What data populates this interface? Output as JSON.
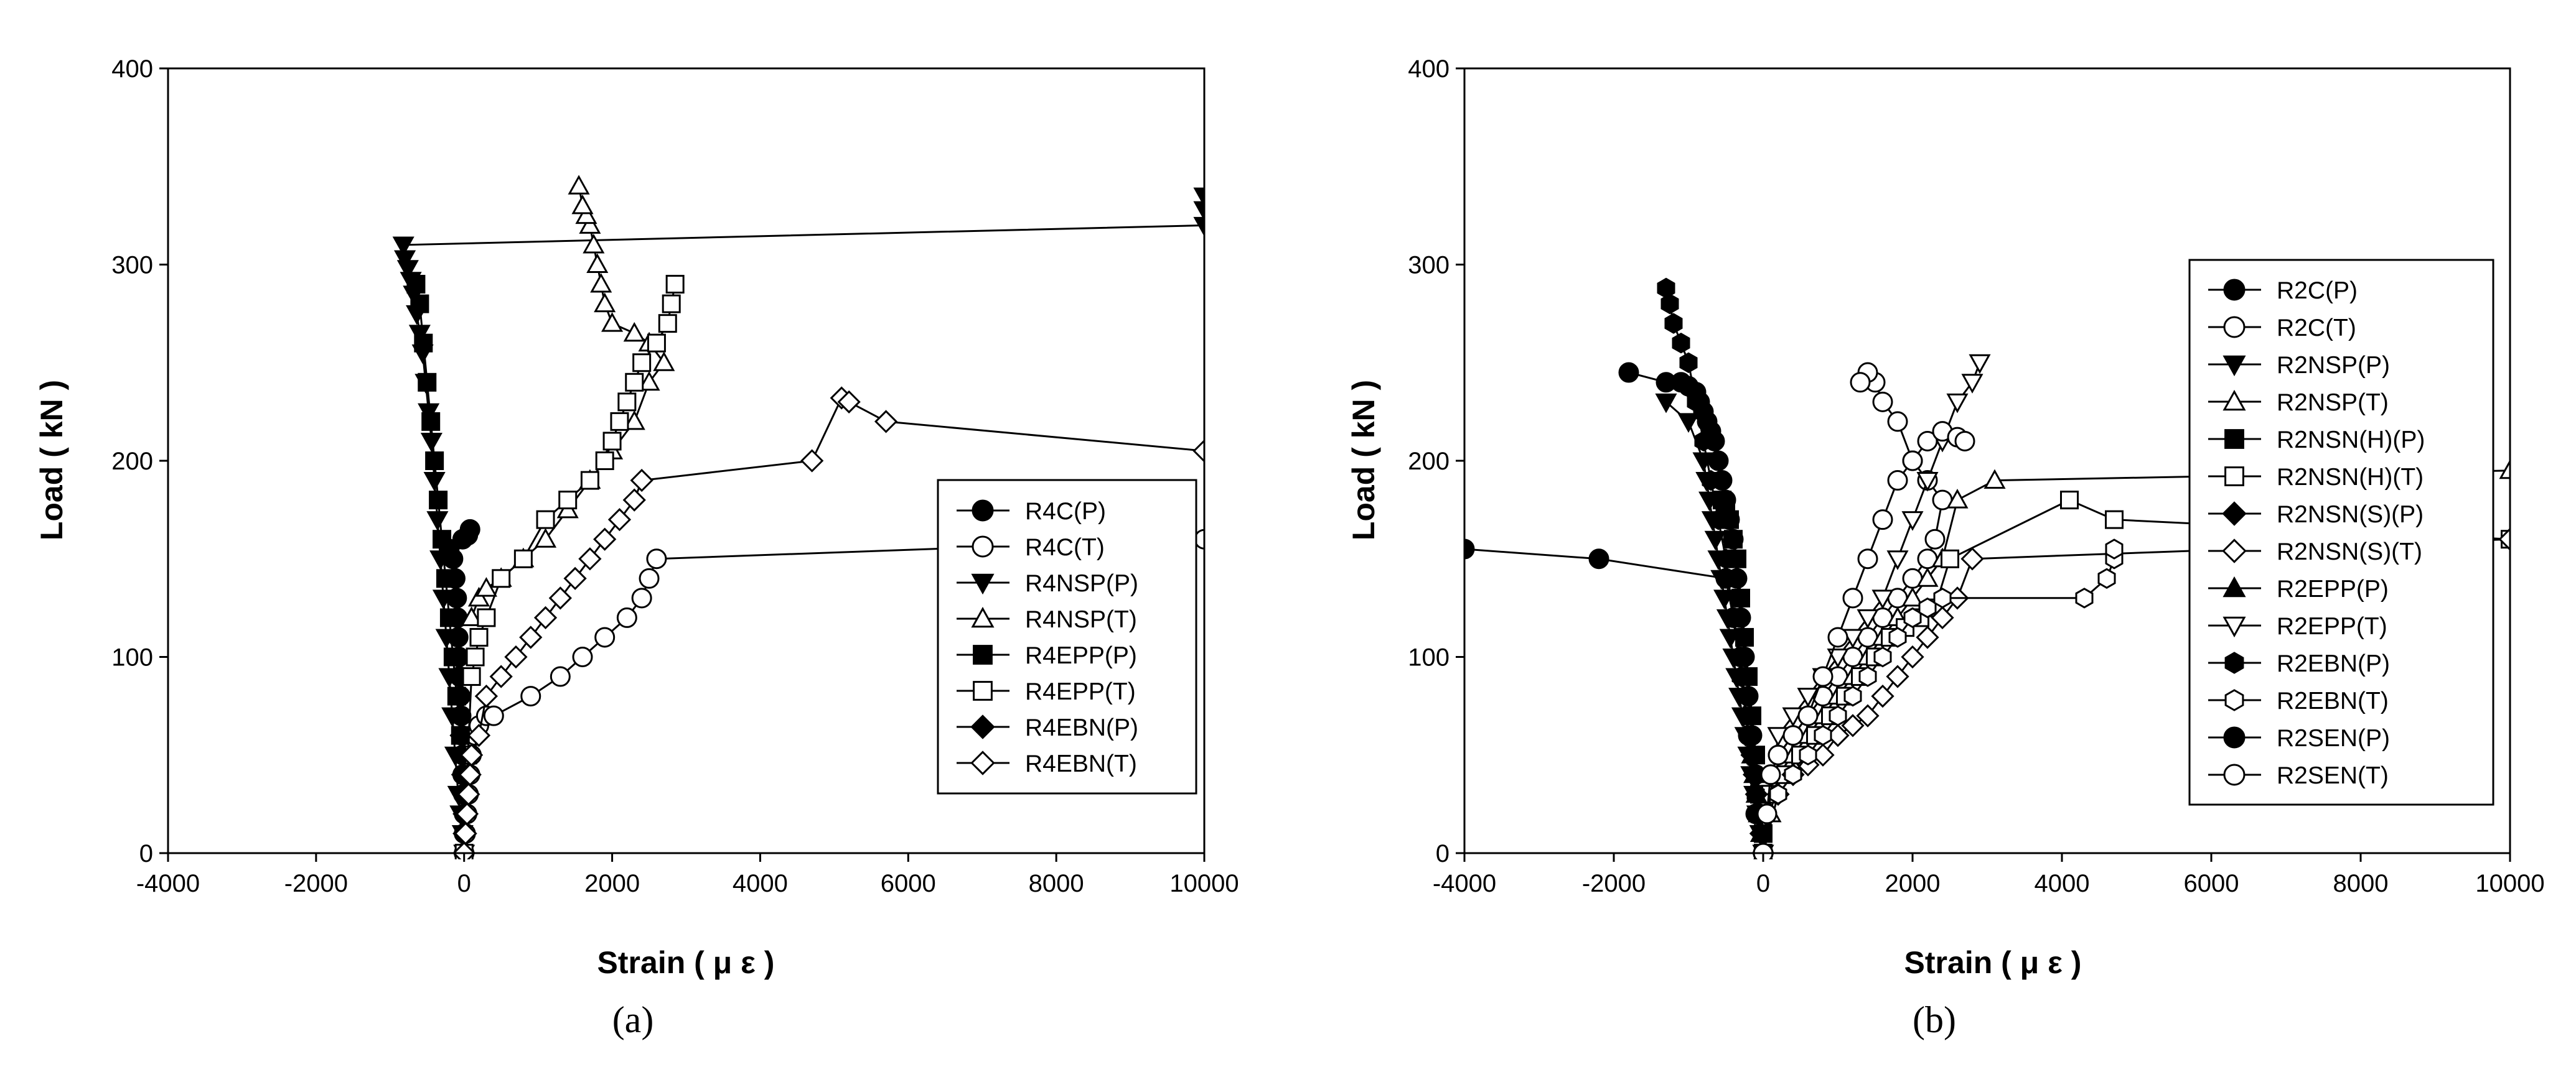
{
  "chart_data": [
    {
      "type": "scatter",
      "caption": "(a)",
      "xlabel": "Strain ( μ ε )",
      "ylabel": "Load ( kN )",
      "xlim": [
        -4000,
        10000
      ],
      "ylim": [
        0,
        400
      ],
      "xticks": [
        -4000,
        -2000,
        0,
        2000,
        4000,
        6000,
        8000,
        10000
      ],
      "yticks": [
        0,
        100,
        200,
        300,
        400
      ],
      "grid": false,
      "legend_position": "lower-right",
      "series": [
        {
          "name": "R4C(P)",
          "marker": "circle",
          "fill": "black",
          "x": [
            0,
            0,
            0,
            -10,
            -20,
            -20,
            -30,
            -40,
            -50,
            -60,
            -70,
            -80,
            -90,
            -100,
            -120,
            -150,
            -200,
            -20,
            50,
            80
          ],
          "y": [
            0,
            10,
            20,
            30,
            40,
            50,
            60,
            70,
            80,
            90,
            100,
            110,
            120,
            130,
            140,
            150,
            155,
            160,
            162,
            165
          ]
        },
        {
          "name": "R4C(T)",
          "marker": "circle",
          "fill": "white",
          "x": [
            0,
            20,
            40,
            60,
            80,
            100,
            150,
            200,
            300,
            400,
            900,
            1300,
            1600,
            1900,
            2200,
            2400,
            2500,
            2600,
            10000
          ],
          "y": [
            0,
            10,
            20,
            30,
            40,
            50,
            60,
            65,
            70,
            70,
            80,
            90,
            100,
            110,
            120,
            130,
            140,
            150,
            160
          ]
        },
        {
          "name": "R4NSP(P)",
          "marker": "triangle-down",
          "fill": "black",
          "x": [
            0,
            -20,
            -50,
            -80,
            -120,
            -160,
            -200,
            -240,
            -280,
            -320,
            -360,
            -400,
            -440,
            -480,
            -520,
            -560,
            -600,
            -640,
            -680,
            -720,
            -760,
            -800,
            -820,
            10000,
            10000,
            10000
          ],
          "y": [
            0,
            10,
            20,
            30,
            50,
            70,
            90,
            110,
            130,
            150,
            170,
            190,
            210,
            225,
            240,
            255,
            265,
            275,
            285,
            292,
            298,
            303,
            310,
            320,
            328,
            335
          ]
        },
        {
          "name": "R4NSP(T)",
          "marker": "triangle-up",
          "fill": "white",
          "x": [
            100,
            200,
            300,
            500,
            800,
            1100,
            1400,
            1700,
            2000,
            2300,
            2500,
            2700,
            2500,
            2300,
            2000,
            1900,
            1850,
            1800,
            1750,
            1700,
            1650,
            1600,
            1550
          ],
          "y": [
            120,
            130,
            135,
            140,
            150,
            160,
            175,
            190,
            205,
            220,
            240,
            250,
            260,
            265,
            270,
            280,
            290,
            300,
            310,
            320,
            325,
            330,
            340
          ]
        },
        {
          "name": "R4EPP(P)",
          "marker": "square",
          "fill": "black",
          "x": [
            -50,
            -100,
            -150,
            -200,
            -250,
            -300,
            -350,
            -400,
            -450,
            -500,
            -550,
            -600,
            -650
          ],
          "y": [
            60,
            80,
            100,
            120,
            140,
            160,
            180,
            200,
            220,
            240,
            260,
            280,
            290
          ]
        },
        {
          "name": "R4EPP(T)",
          "marker": "square",
          "fill": "white",
          "x": [
            0,
            50,
            100,
            150,
            200,
            300,
            500,
            800,
            1100,
            1400,
            1700,
            1900,
            2000,
            2100,
            2200,
            2300,
            2400,
            2600,
            2750,
            2800,
            2850
          ],
          "y": [
            0,
            50,
            90,
            100,
            110,
            120,
            140,
            150,
            170,
            180,
            190,
            200,
            210,
            220,
            230,
            240,
            250,
            260,
            270,
            280,
            290
          ]
        },
        {
          "name": "R4EBN(P)",
          "marker": "diamond",
          "fill": "black",
          "x": [
            0,
            0,
            0,
            -10,
            -20,
            -30,
            -40
          ],
          "y": [
            0,
            10,
            20,
            30,
            40,
            50,
            60
          ]
        },
        {
          "name": "R4EBN(T)",
          "marker": "diamond",
          "fill": "white",
          "x": [
            0,
            20,
            40,
            60,
            80,
            100,
            200,
            300,
            500,
            700,
            900,
            1100,
            1300,
            1500,
            1700,
            1900,
            2100,
            2300,
            2400,
            4700,
            5100,
            5200,
            5700,
            10000
          ],
          "y": [
            0,
            10,
            20,
            30,
            40,
            50,
            60,
            80,
            90,
            100,
            110,
            120,
            130,
            140,
            150,
            160,
            170,
            180,
            190,
            200,
            232,
            230,
            220,
            205
          ]
        }
      ]
    },
    {
      "type": "scatter",
      "caption": "(b)",
      "xlabel": "Strain ( μ ε )",
      "ylabel": "Load ( kN )",
      "xlim": [
        -4000,
        10000
      ],
      "ylim": [
        0,
        400
      ],
      "xticks": [
        -4000,
        -2000,
        0,
        2000,
        4000,
        6000,
        8000,
        10000
      ],
      "yticks": [
        0,
        100,
        200,
        300,
        400
      ],
      "grid": false,
      "legend_position": "right",
      "series": [
        {
          "name": "R2C(P)",
          "marker": "circle",
          "fill": "black",
          "x": [
            0,
            -50,
            -100,
            -150,
            -200,
            -250,
            -300,
            -350,
            -400,
            -450,
            -500,
            -550,
            -600,
            -650,
            -700,
            -750,
            -800,
            -850,
            -900,
            -1000,
            -1100,
            -1300,
            -1800
          ],
          "y": [
            0,
            20,
            40,
            60,
            80,
            100,
            120,
            140,
            160,
            170,
            180,
            190,
            200,
            210,
            215,
            220,
            225,
            230,
            235,
            238,
            240,
            240,
            245
          ]
        },
        {
          "name": "R2C(T)",
          "marker": "circle",
          "fill": "white",
          "x": [
            0,
            50,
            100,
            200,
            400,
            600,
            800,
            1000,
            1200,
            1400,
            1600,
            1800,
            2000,
            2200,
            2300,
            2400,
            2200,
            2000,
            1800,
            1600,
            1500,
            1400,
            1300
          ],
          "y": [
            0,
            20,
            40,
            50,
            60,
            70,
            80,
            90,
            100,
            110,
            120,
            130,
            140,
            150,
            160,
            180,
            190,
            200,
            220,
            230,
            240,
            245,
            240
          ]
        },
        {
          "name": "R2NSP(P)",
          "marker": "triangle-down",
          "fill": "black",
          "x": [
            0,
            -40,
            -80,
            -120,
            -160,
            -200,
            -240,
            -280,
            -320,
            -360,
            -400,
            -440,
            -480,
            -520,
            -560,
            -600,
            -640,
            -680,
            -720,
            -760,
            -800,
            -1000,
            -1300
          ],
          "y": [
            0,
            10,
            20,
            30,
            40,
            50,
            60,
            70,
            80,
            90,
            100,
            110,
            120,
            130,
            140,
            150,
            160,
            170,
            180,
            190,
            200,
            220,
            230
          ]
        },
        {
          "name": "R2NSP(T)",
          "marker": "triangle-up",
          "fill": "white",
          "x": [
            0,
            100,
            200,
            400,
            600,
            800,
            1000,
            1200,
            1400,
            1600,
            1800,
            2000,
            2200,
            2400,
            2600,
            3100,
            10000
          ],
          "y": [
            0,
            20,
            40,
            50,
            60,
            70,
            80,
            90,
            100,
            110,
            120,
            130,
            140,
            150,
            180,
            190,
            195
          ]
        },
        {
          "name": "R2NSN(H)(P)",
          "marker": "square",
          "fill": "black",
          "x": [
            0,
            -50,
            -100,
            -150,
            -200,
            -250,
            -300,
            -350,
            -400,
            -450,
            -500,
            -550
          ],
          "y": [
            10,
            30,
            50,
            70,
            90,
            110,
            130,
            150,
            160,
            170,
            175,
            180
          ]
        },
        {
          "name": "R2NSN(H)(T)",
          "marker": "square",
          "fill": "white",
          "x": [
            0,
            100,
            300,
            500,
            700,
            900,
            1100,
            1300,
            1500,
            1700,
            1900,
            2100,
            2300,
            2500,
            4100,
            4700,
            10000
          ],
          "y": [
            0,
            30,
            40,
            50,
            60,
            70,
            80,
            90,
            100,
            110,
            115,
            120,
            125,
            150,
            180,
            170,
            160
          ]
        },
        {
          "name": "R2NSN(S)(P)",
          "marker": "diamond",
          "fill": "black",
          "x": [
            0,
            -30,
            -60,
            -90,
            -120,
            -150
          ],
          "y": [
            0,
            10,
            20,
            30,
            40,
            50
          ]
        },
        {
          "name": "R2NSN(S)(T)",
          "marker": "diamond",
          "fill": "white",
          "x": [
            0,
            200,
            400,
            600,
            800,
            1000,
            1200,
            1400,
            1600,
            1800,
            2000,
            2200,
            2400,
            2600,
            2800,
            10000
          ],
          "y": [
            0,
            30,
            40,
            45,
            50,
            60,
            65,
            70,
            80,
            90,
            100,
            110,
            120,
            130,
            150,
            160
          ]
        },
        {
          "name": "R2EPP(P)",
          "marker": "triangle-up",
          "fill": "black",
          "x": [
            0,
            -30,
            -60,
            -90,
            -120,
            -150
          ],
          "y": [
            0,
            10,
            20,
            30,
            40,
            50
          ]
        },
        {
          "name": "R2EPP(T)",
          "marker": "triangle-down",
          "fill": "white",
          "x": [
            0,
            200,
            400,
            600,
            800,
            1000,
            1200,
            1400,
            1600,
            1800,
            2000,
            2200,
            2400,
            2600,
            2800,
            2900
          ],
          "y": [
            0,
            60,
            70,
            80,
            90,
            100,
            110,
            120,
            130,
            150,
            170,
            190,
            210,
            230,
            240,
            250
          ]
        },
        {
          "name": "R2EBN(P)",
          "marker": "hexagon",
          "fill": "black",
          "x": [
            0,
            -100,
            -200,
            -300,
            -400,
            -500,
            -600,
            -700,
            -800,
            -900,
            -1000,
            -1100,
            -1200,
            -1250,
            -1300
          ],
          "y": [
            0,
            30,
            60,
            90,
            120,
            150,
            170,
            190,
            210,
            230,
            250,
            260,
            270,
            280,
            288
          ]
        },
        {
          "name": "R2EBN(T)",
          "marker": "hexagon",
          "fill": "white",
          "x": [
            0,
            200,
            400,
            600,
            800,
            1000,
            1200,
            1400,
            1600,
            1800,
            2000,
            2200,
            2400,
            4300,
            4600,
            4700,
            4700
          ],
          "y": [
            0,
            30,
            40,
            50,
            60,
            70,
            80,
            90,
            100,
            110,
            120,
            125,
            130,
            130,
            140,
            150,
            155
          ]
        },
        {
          "name": "R2SEN(P)",
          "marker": "circle",
          "fill": "black",
          "x": [
            -4000,
            -2200,
            -500,
            -400,
            -300,
            -200,
            -100
          ],
          "y": [
            155,
            150,
            140,
            120,
            100,
            60,
            20
          ]
        },
        {
          "name": "R2SEN(T)",
          "marker": "circle",
          "fill": "white",
          "x": [
            0,
            50,
            100,
            200,
            400,
            600,
            800,
            1000,
            1200,
            1400,
            1600,
            1800,
            2000,
            2200,
            2400,
            2600,
            2700
          ],
          "y": [
            0,
            20,
            40,
            50,
            60,
            70,
            90,
            110,
            130,
            150,
            170,
            190,
            200,
            210,
            215,
            212,
            210
          ]
        }
      ]
    }
  ]
}
